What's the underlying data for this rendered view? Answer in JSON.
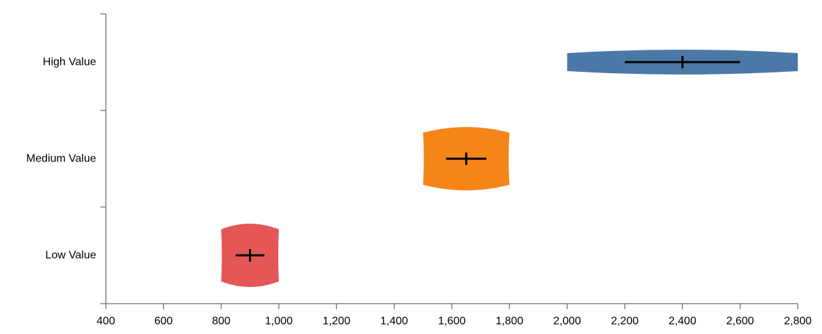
{
  "chart_data": {
    "type": "range-bar-with-error",
    "title": "",
    "xlabel": "",
    "ylabel": "",
    "xlim": [
      400,
      2800
    ],
    "x_ticks": [
      400,
      600,
      800,
      1000,
      1200,
      1400,
      1600,
      1800,
      2000,
      2200,
      2400,
      2600,
      2800
    ],
    "x_tick_labels": [
      "400",
      "600",
      "800",
      "1,000",
      "1,200",
      "1,400",
      "1,600",
      "1,800",
      "2,000",
      "2,200",
      "2,400",
      "2,600",
      "2,800"
    ],
    "grid": false,
    "categories": [
      "High Value",
      "Medium Value",
      "Low Value"
    ],
    "series": [
      {
        "category": "High Value",
        "range_low": 2000,
        "range_high": 2800,
        "center": 2400,
        "error_low": 2200,
        "error_high": 2600,
        "color": "#4c78a8"
      },
      {
        "category": "Medium Value",
        "range_low": 1500,
        "range_high": 1800,
        "center": 1650,
        "error_low": 1580,
        "error_high": 1720,
        "color": "#f58518"
      },
      {
        "category": "Low Value",
        "range_low": 800,
        "range_high": 1000,
        "center": 900,
        "error_low": 850,
        "error_high": 950,
        "color": "#e45756"
      }
    ]
  }
}
